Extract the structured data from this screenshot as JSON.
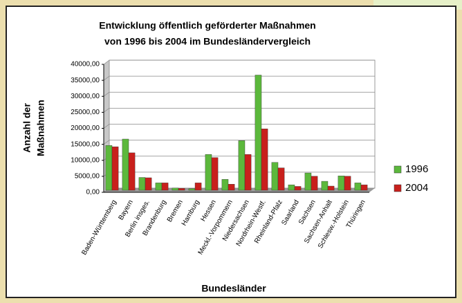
{
  "chart_data": {
    "type": "bar",
    "title": [
      "Entwicklung öffentlich geförderter Maßnahmen",
      "von 1996 bis 2004 im Bundesländervergleich"
    ],
    "xlabel": "Bundesländer",
    "ylabel": [
      "Anzahl der",
      "Maßnahmen"
    ],
    "categories": [
      "Baden-Württemberg",
      "Bayern",
      "Berlin insges.",
      "Brandenburg",
      "Bremen",
      "Hamburg",
      "Hessen",
      "Meckl.-Vorpommern",
      "Niedersachsen",
      "Nordrhein-Westf.",
      "Rheinland-Pfalz",
      "Saarland",
      "Sachsen",
      "Sachsen-Anhalt",
      "Schlesw.-Holstein",
      "Thüringen"
    ],
    "series": [
      {
        "name": "1996",
        "color": "#5cb83c",
        "values": [
          14000,
          16000,
          4000,
          2300,
          700,
          500,
          11200,
          3400,
          15500,
          36000,
          8700,
          1700,
          5400,
          2800,
          4500,
          2300
        ]
      },
      {
        "name": "2004",
        "color": "#c8201c",
        "values": [
          13600,
          11700,
          3900,
          2300,
          600,
          2300,
          10200,
          1900,
          11200,
          19200,
          7000,
          1200,
          4400,
          1300,
          4400,
          1700
        ]
      }
    ],
    "ylim": [
      0,
      40000
    ],
    "yticks": [
      {
        "value": 0,
        "label": "0,00"
      },
      {
        "value": 5000,
        "label": "5000,00"
      },
      {
        "value": 10000,
        "label": "10000,00"
      },
      {
        "value": 15000,
        "label": "15000,00"
      },
      {
        "value": 20000,
        "label": "20000,00"
      },
      {
        "value": 25000,
        "label": "25000,00"
      },
      {
        "value": 30000,
        "label": "30000,00"
      },
      {
        "value": 35000,
        "label": "35000,00"
      },
      {
        "value": 40000,
        "label": "40000,00"
      }
    ],
    "grid": true,
    "legend": "right"
  }
}
